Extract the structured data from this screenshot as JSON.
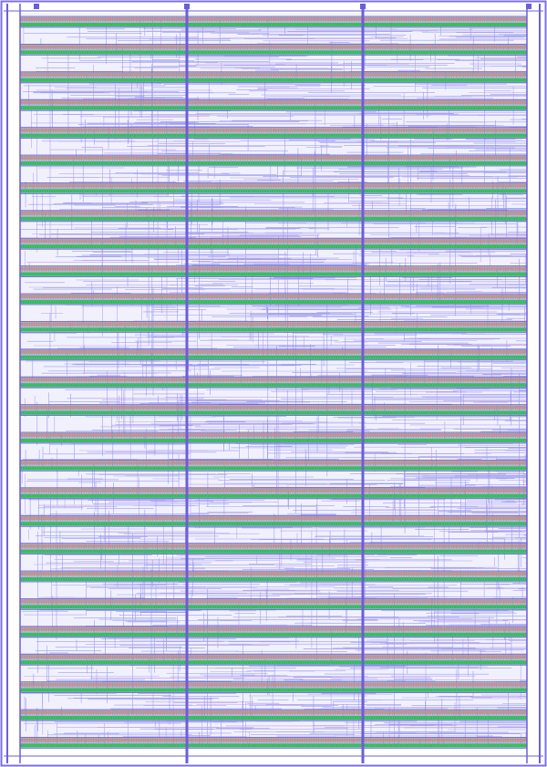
{
  "diagram": {
    "type": "chip-layout",
    "cell_rows": 27,
    "power_straps_vertical": 3,
    "colors": {
      "background": "#ffffff",
      "routing_wire": "#8f8ff0",
      "routing_wire_alt": "#b59be8",
      "power_strap": "#6a5fd8",
      "border": "#7b6fe0",
      "cell_green": "#2fbf4f",
      "cell_red": "#d9826a",
      "cell_purple": "#a77ad8",
      "cell_teal": "#5fb8a8"
    }
  }
}
